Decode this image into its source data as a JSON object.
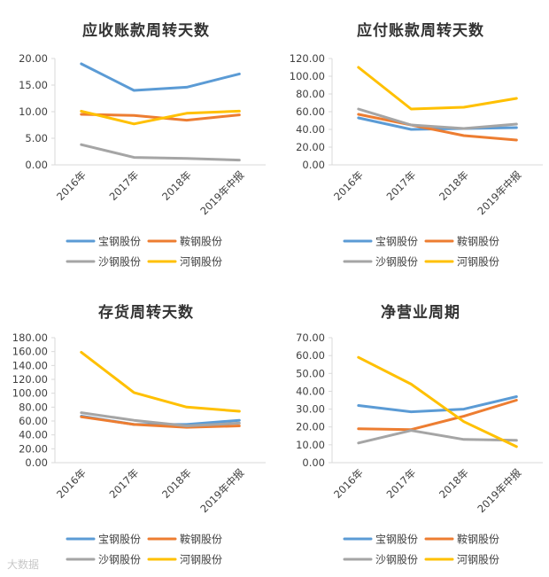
{
  "chart_data": [
    {
      "type": "line",
      "title": "应收账款周转天数",
      "categories": [
        "2016年",
        "2017年",
        "2018年",
        "2019年中报"
      ],
      "ylim": [
        0,
        20
      ],
      "yticks": [
        "0.00",
        "5.00",
        "10.00",
        "15.00",
        "20.00"
      ],
      "series": [
        {
          "name": "宝钢股份",
          "color": "#5B9BD5",
          "values": [
            19.0,
            14.0,
            14.6,
            17.1
          ]
        },
        {
          "name": "鞍钢股份",
          "color": "#ED7D31",
          "values": [
            9.5,
            9.3,
            8.4,
            9.4
          ]
        },
        {
          "name": "沙钢股份",
          "color": "#A5A5A5",
          "values": [
            3.8,
            1.4,
            1.2,
            0.9
          ]
        },
        {
          "name": "河钢股份",
          "color": "#FFC000",
          "values": [
            10.1,
            7.7,
            9.7,
            10.1
          ]
        }
      ]
    },
    {
      "type": "line",
      "title": "应付账款周转天数",
      "categories": [
        "2016年",
        "2017年",
        "2018年",
        "2019年中报"
      ],
      "ylim": [
        0,
        120
      ],
      "yticks": [
        "0.00",
        "20.00",
        "40.00",
        "60.00",
        "80.00",
        "100.00",
        "120.00"
      ],
      "series": [
        {
          "name": "宝钢股份",
          "color": "#5B9BD5",
          "values": [
            53,
            40,
            41,
            42
          ]
        },
        {
          "name": "鞍钢股份",
          "color": "#ED7D31",
          "values": [
            57,
            45,
            33,
            28
          ]
        },
        {
          "name": "沙钢股份",
          "color": "#A5A5A5",
          "values": [
            63,
            45,
            41,
            46
          ]
        },
        {
          "name": "河钢股份",
          "color": "#FFC000",
          "values": [
            110,
            63,
            65,
            75
          ]
        }
      ]
    },
    {
      "type": "line",
      "title": "存货周转天数",
      "categories": [
        "2016年",
        "2017年",
        "2018年",
        "2019年中报"
      ],
      "ylim": [
        0,
        180
      ],
      "yticks": [
        "0.00",
        "20.00",
        "40.00",
        "60.00",
        "80.00",
        "100.00",
        "120.00",
        "140.00",
        "160.00",
        "180.00"
      ],
      "series": [
        {
          "name": "宝钢股份",
          "color": "#5B9BD5",
          "values": [
            67,
            55,
            55,
            61
          ]
        },
        {
          "name": "鞍钢股份",
          "color": "#ED7D31",
          "values": [
            66,
            55,
            51,
            53
          ]
        },
        {
          "name": "沙钢股份",
          "color": "#A5A5A5",
          "values": [
            72,
            61,
            53,
            57
          ]
        },
        {
          "name": "河钢股份",
          "color": "#FFC000",
          "values": [
            159,
            101,
            80,
            74
          ]
        }
      ]
    },
    {
      "type": "line",
      "title": "净营业周期",
      "categories": [
        "2016年",
        "2017年",
        "2018年",
        "2019年中报"
      ],
      "ylim": [
        0,
        70
      ],
      "yticks": [
        "0.00",
        "10.00",
        "20.00",
        "30.00",
        "40.00",
        "50.00",
        "60.00",
        "70.00"
      ],
      "series": [
        {
          "name": "宝钢股份",
          "color": "#5B9BD5",
          "values": [
            32,
            28.5,
            30,
            37
          ]
        },
        {
          "name": "鞍钢股份",
          "color": "#ED7D31",
          "values": [
            19,
            18.5,
            26,
            35
          ]
        },
        {
          "name": "沙钢股份",
          "color": "#A5A5A5",
          "values": [
            11,
            18,
            13,
            12.5
          ]
        },
        {
          "name": "河钢股份",
          "color": "#FFC000",
          "values": [
            59,
            44,
            23,
            9
          ]
        }
      ]
    }
  ],
  "watermark": "大数据"
}
